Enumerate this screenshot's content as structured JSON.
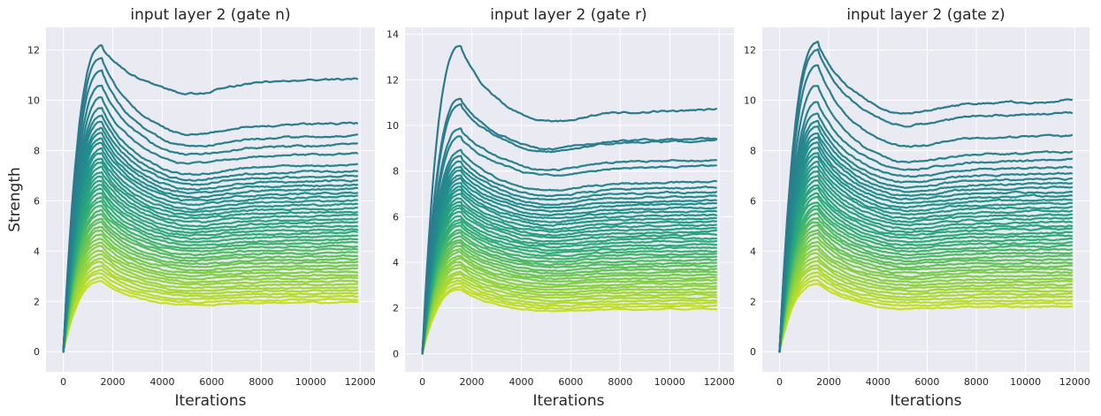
{
  "chart_data": [
    {
      "type": "line",
      "title": "input layer 2 (gate n)",
      "xlabel": "Iterations",
      "ylabel": "Strength",
      "xlim": [
        -700,
        12600
      ],
      "ylim": [
        -0.8,
        12.9
      ],
      "xticks": [
        0,
        2000,
        4000,
        6000,
        8000,
        10000,
        12000
      ],
      "yticks": [
        0,
        2,
        4,
        6,
        8,
        10,
        12
      ],
      "x_tick_labels": [
        "0",
        "2000",
        "4000",
        "6000",
        "8000",
        "10000",
        "12000"
      ],
      "y_tick_labels": [
        "0",
        "2",
        "4",
        "6",
        "8",
        "10",
        "12"
      ],
      "grid": true,
      "colormap": "viridis (teal to yellow-green)",
      "series_count": 45,
      "peak_iteration": 1600,
      "peak_strength_range": [
        2.8,
        12.2
      ],
      "final_strength_range": [
        1.95,
        10.8
      ],
      "series": [
        {
          "peak": 12.2,
          "final": 10.8
        },
        {
          "peak": 11.7,
          "final": 9.05
        },
        {
          "peak": 11.2,
          "final": 8.55
        },
        {
          "peak": 10.6,
          "final": 8.2
        },
        {
          "peak": 10.1,
          "final": 7.85
        },
        {
          "peak": 9.7,
          "final": 7.4
        }
      ]
    },
    {
      "type": "line",
      "title": "input layer 2 (gate r)",
      "xlabel": "Iterations",
      "ylabel": "",
      "xlim": [
        -700,
        12600
      ],
      "ylim": [
        -0.8,
        14.3
      ],
      "xticks": [
        0,
        2000,
        4000,
        6000,
        8000,
        10000,
        12000
      ],
      "yticks": [
        0,
        2,
        4,
        6,
        8,
        10,
        12,
        14
      ],
      "x_tick_labels": [
        "0",
        "2000",
        "4000",
        "6000",
        "8000",
        "10000",
        "12000"
      ],
      "y_tick_labels": [
        "0",
        "2",
        "4",
        "6",
        "8",
        "10",
        "12",
        "14"
      ],
      "grid": true,
      "colormap": "viridis (teal to yellow-green)",
      "series_count": 45,
      "peak_iteration": 1600,
      "peak_strength_range": [
        2.8,
        13.5
      ],
      "final_strength_range": [
        1.95,
        10.65
      ],
      "series": [
        {
          "peak": 13.5,
          "final": 10.65
        },
        {
          "peak": 11.2,
          "final": 9.4
        },
        {
          "peak": 10.9,
          "final": 9.3
        },
        {
          "peak": 9.9,
          "final": 8.45
        },
        {
          "peak": 9.5,
          "final": 8.2
        },
        {
          "peak": 8.9,
          "final": 7.5
        }
      ]
    },
    {
      "type": "line",
      "title": "input layer 2 (gate z)",
      "xlabel": "Iterations",
      "ylabel": "",
      "xlim": [
        -700,
        12600
      ],
      "ylim": [
        -0.8,
        12.9
      ],
      "xticks": [
        0,
        2000,
        4000,
        6000,
        8000,
        10000,
        12000
      ],
      "yticks": [
        0,
        2,
        4,
        6,
        8,
        10,
        12
      ],
      "x_tick_labels": [
        "0",
        "2000",
        "4000",
        "6000",
        "8000",
        "10000",
        "12000"
      ],
      "y_tick_labels": [
        "0",
        "2",
        "4",
        "6",
        "8",
        "10",
        "12"
      ],
      "grid": true,
      "colormap": "viridis (teal to yellow-green)",
      "series_count": 45,
      "peak_iteration": 1600,
      "peak_strength_range": [
        2.7,
        12.3
      ],
      "final_strength_range": [
        1.8,
        9.95
      ],
      "series": [
        {
          "peak": 12.3,
          "final": 9.95
        },
        {
          "peak": 12.0,
          "final": 9.45
        },
        {
          "peak": 11.4,
          "final": 8.55
        },
        {
          "peak": 10.6,
          "final": 7.9
        },
        {
          "peak": 9.9,
          "final": 7.6
        },
        {
          "peak": 9.5,
          "final": 7.3
        }
      ]
    }
  ]
}
